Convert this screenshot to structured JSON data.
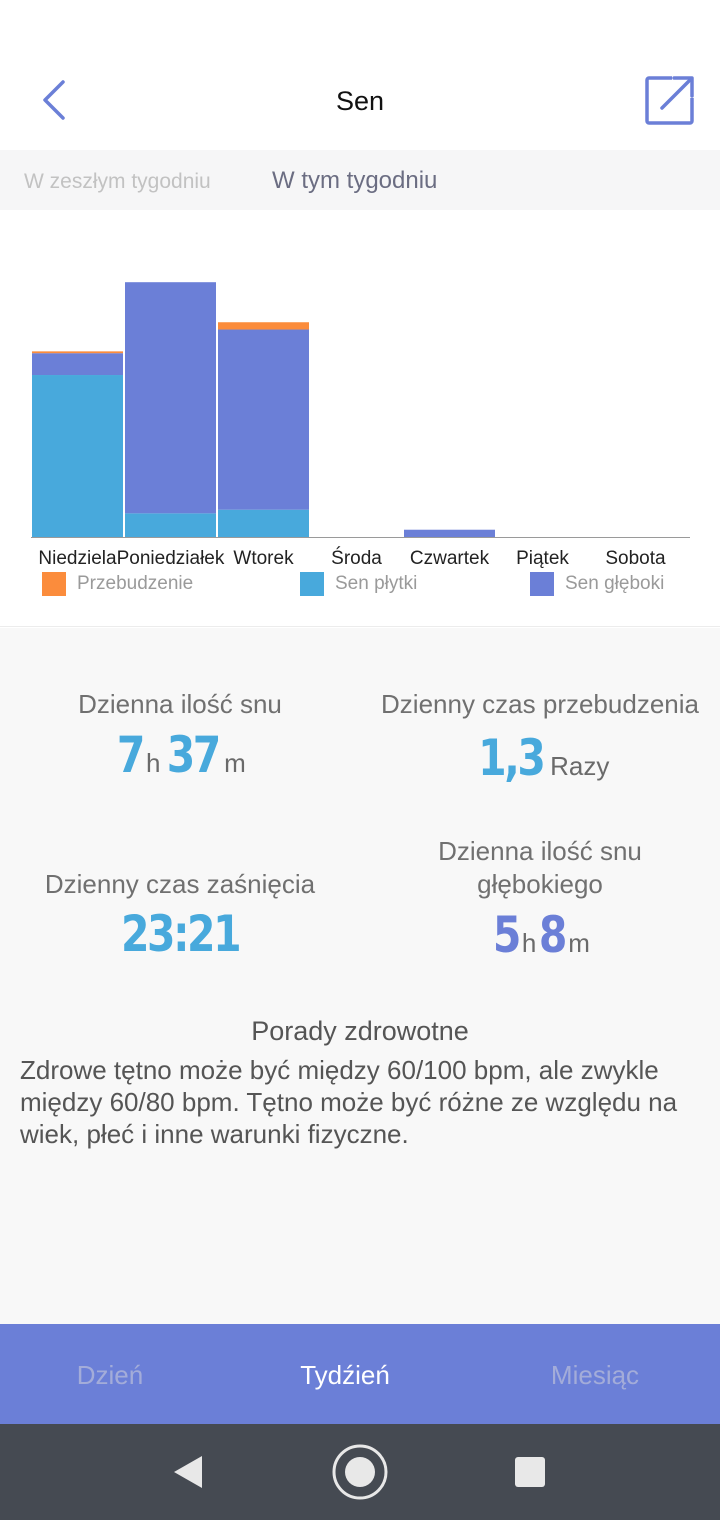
{
  "header": {
    "title": "Sen",
    "back_icon": "chevron-left-icon",
    "share_icon": "share-external-icon"
  },
  "period_tabs": {
    "previous": "W zeszłym tygodniu",
    "current": "W tym tygodniu",
    "selected": "current"
  },
  "chart_data": {
    "type": "bar",
    "stacked": true,
    "categories": [
      "Niedziela",
      "Poniedziałek",
      "Wtorek",
      "Środa",
      "Czwartek",
      "Piątek",
      "Sobota"
    ],
    "series": [
      {
        "name": "Sen płytki",
        "color": "#48a9dc",
        "values": [
          8.9,
          1.3,
          1.5,
          0,
          0,
          0,
          0
        ]
      },
      {
        "name": "Sen głęboki",
        "color": "#6b7fd7",
        "values": [
          1.2,
          12.7,
          9.9,
          0,
          0.4,
          0,
          0
        ]
      },
      {
        "name": "Przebudzenie",
        "color": "#fb8c3c",
        "values": [
          0.1,
          0,
          0.4,
          0,
          0,
          0,
          0
        ]
      }
    ],
    "legend_order": [
      "Przebudzenie",
      "Sen płytki",
      "Sen głęboki"
    ],
    "ylim": [
      0,
      15
    ],
    "grid": false
  },
  "stats": {
    "daily_sleep": {
      "label": "Dzienna ilość snu",
      "hours": "7",
      "h_unit": "h",
      "minutes": "37",
      "m_unit": "m"
    },
    "daily_wake": {
      "label": "Dzienny czas przebudzenia",
      "value": "1,3",
      "unit": "Razy"
    },
    "sleep_time": {
      "label": "Dzienny czas zaśnięcia",
      "value": "23:21"
    },
    "deep_sleep": {
      "label_line1": "Dzienna ilość snu",
      "label_line2": "głębokiego",
      "hours": "5",
      "h_unit": "h",
      "minutes": "8",
      "m_unit": "m"
    }
  },
  "tips": {
    "title": "Porady zdrowotne",
    "body": "Zdrowe tętno może być między 60/100 bpm, ale zwykle między 60/80 bpm. Tętno może być różne ze względu na wiek, płeć i inne warunki fizyczne."
  },
  "bottom_tabs": {
    "day": "Dzień",
    "week": "Tydźień",
    "month": "Miesiąc",
    "selected": "week"
  },
  "colors": {
    "accent": "#6b7fd7",
    "light_sleep": "#48a9dc",
    "deep_sleep": "#6b7fd7",
    "awake": "#fb8c3c",
    "navbar": "#454a52"
  }
}
